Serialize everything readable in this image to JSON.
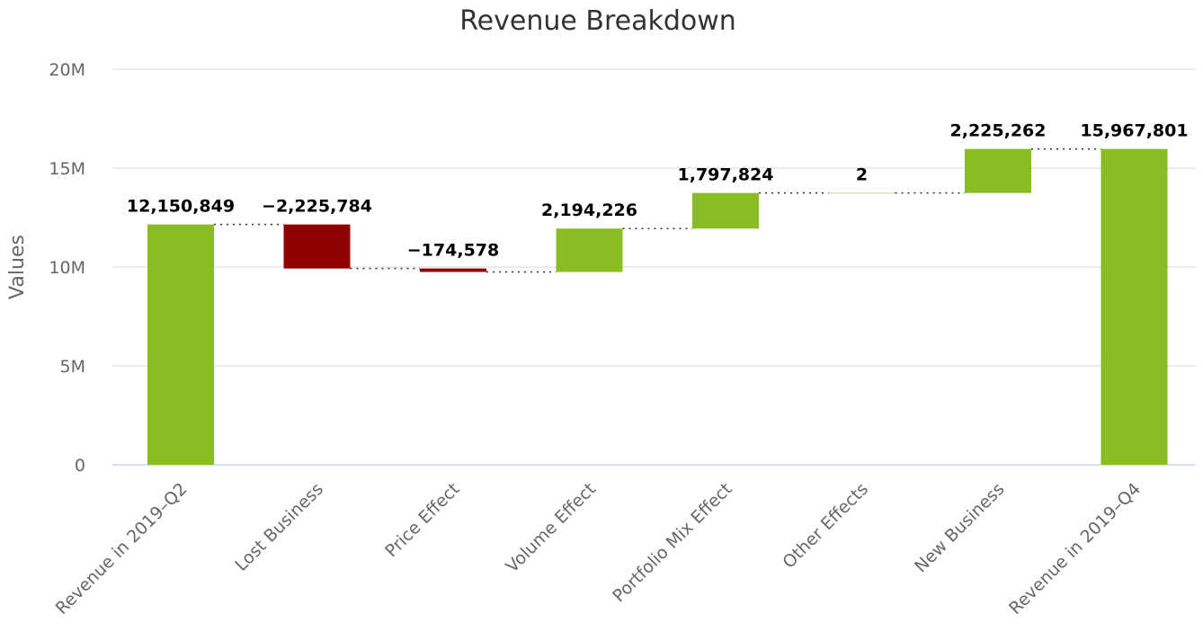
{
  "chart_data": {
    "type": "waterfall",
    "title": "Revenue Breakdown",
    "ylabel": "Values",
    "xlabel": "",
    "ylim": [
      0,
      20000000
    ],
    "yticks": [
      {
        "value": 0,
        "label": "0"
      },
      {
        "value": 5000000,
        "label": "5M"
      },
      {
        "value": 10000000,
        "label": "10M"
      },
      {
        "value": 15000000,
        "label": "15M"
      },
      {
        "value": 20000000,
        "label": "20M"
      }
    ],
    "grid": true,
    "legend": "none",
    "colors": {
      "increase": "#8abd24",
      "decrease": "#910000",
      "total": "#8abd24"
    },
    "points": [
      {
        "category": "Revenue in 2019-Q2",
        "value": 12150849,
        "label": "12,150,849",
        "kind": "total"
      },
      {
        "category": "Lost Business",
        "value": -2225784,
        "label": "−2,225,784",
        "kind": "decrease"
      },
      {
        "category": "Price Effect",
        "value": -174578,
        "label": "−174,578",
        "kind": "decrease"
      },
      {
        "category": "Volume Effect",
        "value": 2194226,
        "label": "2,194,226",
        "kind": "increase"
      },
      {
        "category": "Portfolio Mix Effect",
        "value": 1797824,
        "label": "1,797,824",
        "kind": "increase"
      },
      {
        "category": "Other Effects",
        "value": 2,
        "label": "2",
        "kind": "increase"
      },
      {
        "category": "New Business",
        "value": 2225262,
        "label": "2,225,262",
        "kind": "increase"
      },
      {
        "category": "Revenue in 2019-Q4",
        "value": 15967801,
        "label": "15,967,801",
        "kind": "total"
      }
    ]
  }
}
